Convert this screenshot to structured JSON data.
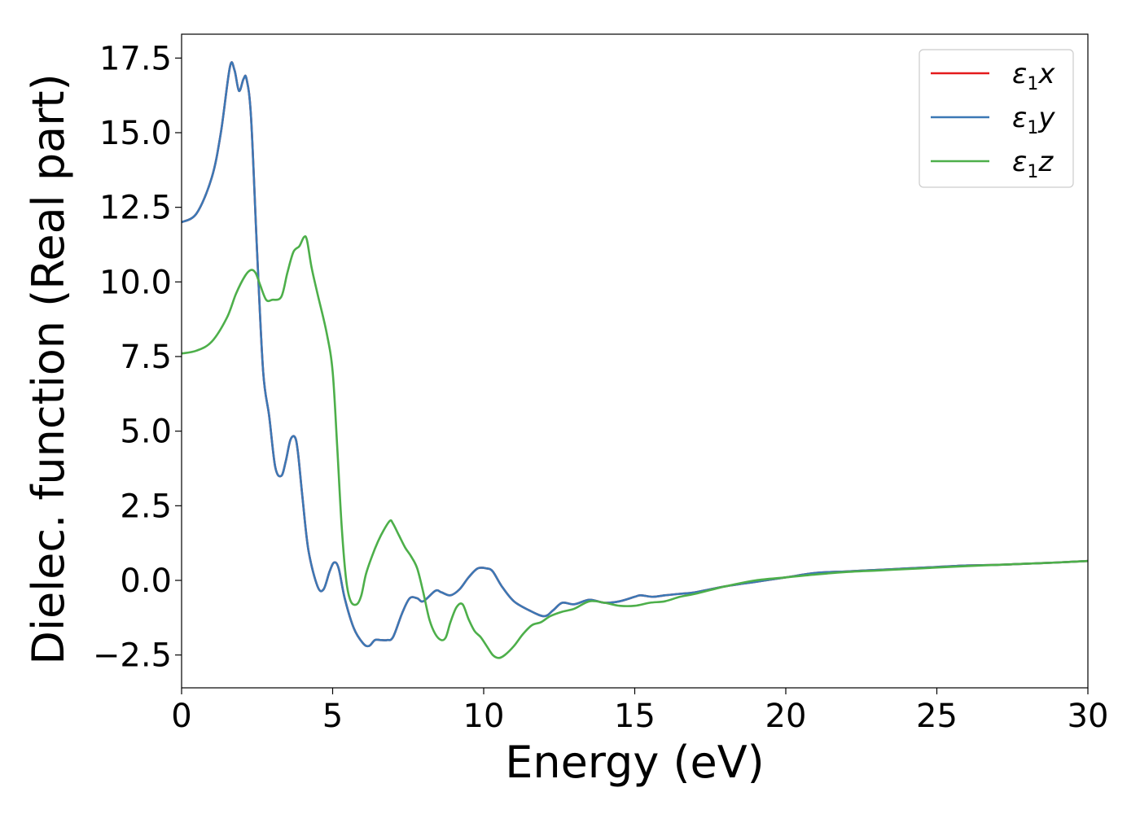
{
  "chart_data": {
    "type": "line",
    "xlabel": "Energy (eV)",
    "ylabel": "Dielec. function (Real part)",
    "xlim": [
      0,
      30
    ],
    "ylim": [
      -3.6,
      18.3
    ],
    "xticks": [
      0,
      5,
      10,
      15,
      20,
      25,
      30
    ],
    "xtick_labels": [
      "0",
      "5",
      "10",
      "15",
      "20",
      "25",
      "30"
    ],
    "yticks": [
      -2.5,
      0.0,
      2.5,
      5.0,
      7.5,
      10.0,
      12.5,
      15.0,
      17.5
    ],
    "ytick_labels": [
      "−2.5",
      "0.0",
      "2.5",
      "5.0",
      "7.5",
      "10.0",
      "12.5",
      "15.0",
      "17.5"
    ],
    "grid": false,
    "legend_position": "top-right",
    "series": [
      {
        "name": "ε₁x",
        "symbol": "ε",
        "subscript": "1",
        "axis": "x",
        "color": "#e41a1c",
        "x": [
          0,
          0.5,
          1.0,
          1.3,
          1.6,
          1.75,
          1.9,
          2.05,
          2.15,
          2.3,
          2.5,
          2.7,
          2.9,
          3.1,
          3.3,
          3.45,
          3.6,
          3.75,
          3.85,
          4.0,
          4.2,
          4.5,
          4.7,
          4.9,
          5.05,
          5.2,
          5.4,
          5.7,
          6.0,
          6.2,
          6.4,
          6.6,
          6.8,
          7.0,
          7.3,
          7.55,
          7.8,
          8.0,
          8.4,
          8.6,
          8.9,
          9.2,
          9.5,
          9.8,
          10.1,
          10.3,
          10.6,
          11.0,
          11.5,
          12.0,
          12.3,
          12.6,
          13.0,
          13.5,
          14.0,
          14.5,
          15.0,
          15.2,
          15.6,
          16.0,
          16.5,
          17.0,
          18.0,
          19.0,
          20.0,
          21.0,
          22.0,
          23.0,
          24.0,
          25.0,
          26.0,
          27.0,
          28.0,
          29.0,
          30.0
        ],
        "y": [
          12.0,
          12.3,
          13.5,
          15.0,
          17.2,
          17.1,
          16.4,
          16.8,
          16.8,
          15.5,
          11.0,
          7.0,
          5.5,
          3.8,
          3.5,
          4.0,
          4.7,
          4.8,
          4.3,
          2.8,
          1.0,
          -0.2,
          -0.3,
          0.3,
          0.6,
          0.4,
          -0.6,
          -1.6,
          -2.1,
          -2.2,
          -2.0,
          -2.0,
          -2.0,
          -1.9,
          -1.1,
          -0.6,
          -0.6,
          -0.7,
          -0.35,
          -0.4,
          -0.5,
          -0.3,
          0.1,
          0.4,
          0.4,
          0.3,
          -0.2,
          -0.7,
          -1.0,
          -1.2,
          -1.0,
          -0.75,
          -0.8,
          -0.65,
          -0.75,
          -0.7,
          -0.55,
          -0.5,
          -0.55,
          -0.5,
          -0.45,
          -0.4,
          -0.2,
          -0.05,
          0.1,
          0.25,
          0.3,
          0.35,
          0.4,
          0.45,
          0.5,
          0.52,
          0.56,
          0.6,
          0.65
        ]
      },
      {
        "name": "ε₁y",
        "symbol": "ε",
        "subscript": "1",
        "axis": "y",
        "color": "#3b78b5",
        "x": [
          0,
          0.5,
          1.0,
          1.3,
          1.6,
          1.75,
          1.9,
          2.05,
          2.15,
          2.3,
          2.5,
          2.7,
          2.9,
          3.1,
          3.3,
          3.45,
          3.6,
          3.75,
          3.85,
          4.0,
          4.2,
          4.5,
          4.7,
          4.9,
          5.05,
          5.2,
          5.4,
          5.7,
          6.0,
          6.2,
          6.4,
          6.6,
          6.8,
          7.0,
          7.3,
          7.55,
          7.8,
          8.0,
          8.4,
          8.6,
          8.9,
          9.2,
          9.5,
          9.8,
          10.1,
          10.3,
          10.6,
          11.0,
          11.5,
          12.0,
          12.3,
          12.6,
          13.0,
          13.5,
          14.0,
          14.5,
          15.0,
          15.2,
          15.6,
          16.0,
          16.5,
          17.0,
          18.0,
          19.0,
          20.0,
          21.0,
          22.0,
          23.0,
          24.0,
          25.0,
          26.0,
          27.0,
          28.0,
          29.0,
          30.0
        ],
        "y": [
          12.0,
          12.3,
          13.5,
          15.0,
          17.2,
          17.1,
          16.4,
          16.8,
          16.8,
          15.5,
          11.0,
          7.0,
          5.5,
          3.8,
          3.5,
          4.0,
          4.7,
          4.8,
          4.3,
          2.8,
          1.0,
          -0.2,
          -0.3,
          0.3,
          0.6,
          0.4,
          -0.6,
          -1.6,
          -2.1,
          -2.2,
          -2.0,
          -2.0,
          -2.0,
          -1.9,
          -1.1,
          -0.6,
          -0.6,
          -0.7,
          -0.35,
          -0.4,
          -0.5,
          -0.3,
          0.1,
          0.4,
          0.4,
          0.3,
          -0.2,
          -0.7,
          -1.0,
          -1.2,
          -1.0,
          -0.75,
          -0.8,
          -0.65,
          -0.75,
          -0.7,
          -0.55,
          -0.5,
          -0.55,
          -0.5,
          -0.45,
          -0.4,
          -0.2,
          -0.05,
          0.1,
          0.25,
          0.3,
          0.35,
          0.4,
          0.45,
          0.5,
          0.52,
          0.56,
          0.6,
          0.65
        ]
      },
      {
        "name": "ε₁z",
        "symbol": "ε",
        "subscript": "1",
        "axis": "z",
        "color": "#4daf4a",
        "x": [
          0,
          0.5,
          1.0,
          1.5,
          1.8,
          2.1,
          2.3,
          2.45,
          2.6,
          2.8,
          3.0,
          3.3,
          3.5,
          3.7,
          3.9,
          4.05,
          4.15,
          4.3,
          4.5,
          4.8,
          5.0,
          5.15,
          5.3,
          5.45,
          5.6,
          5.8,
          5.95,
          6.1,
          6.3,
          6.5,
          6.7,
          6.9,
          7.0,
          7.2,
          7.4,
          7.6,
          7.8,
          8.0,
          8.2,
          8.4,
          8.6,
          8.75,
          8.9,
          9.1,
          9.3,
          9.5,
          9.7,
          9.9,
          10.1,
          10.3,
          10.5,
          10.7,
          11.0,
          11.3,
          11.6,
          11.9,
          12.2,
          12.6,
          13.0,
          13.5,
          14.0,
          14.5,
          15.0,
          15.5,
          16.0,
          16.5,
          17.0,
          18.0,
          19.0,
          20.0,
          21.0,
          22.0,
          23.0,
          24.0,
          25.0,
          26.0,
          27.0,
          28.0,
          29.0,
          30.0
        ],
        "y": [
          7.6,
          7.7,
          8.0,
          8.8,
          9.6,
          10.2,
          10.4,
          10.3,
          9.9,
          9.4,
          9.4,
          9.5,
          10.3,
          11.0,
          11.2,
          11.5,
          11.4,
          10.5,
          9.6,
          8.3,
          7.0,
          4.5,
          1.8,
          0.0,
          -0.7,
          -0.8,
          -0.5,
          0.2,
          0.8,
          1.3,
          1.7,
          2.0,
          1.9,
          1.5,
          1.1,
          0.8,
          0.4,
          -0.4,
          -1.3,
          -1.8,
          -2.0,
          -1.9,
          -1.4,
          -0.9,
          -0.8,
          -1.3,
          -1.7,
          -1.9,
          -2.2,
          -2.5,
          -2.6,
          -2.5,
          -2.2,
          -1.8,
          -1.5,
          -1.4,
          -1.2,
          -1.05,
          -0.95,
          -0.7,
          -0.75,
          -0.85,
          -0.85,
          -0.75,
          -0.7,
          -0.55,
          -0.45,
          -0.2,
          0.0,
          0.1,
          0.2,
          0.28,
          0.33,
          0.38,
          0.43,
          0.48,
          0.52,
          0.56,
          0.6,
          0.65
        ]
      }
    ]
  }
}
